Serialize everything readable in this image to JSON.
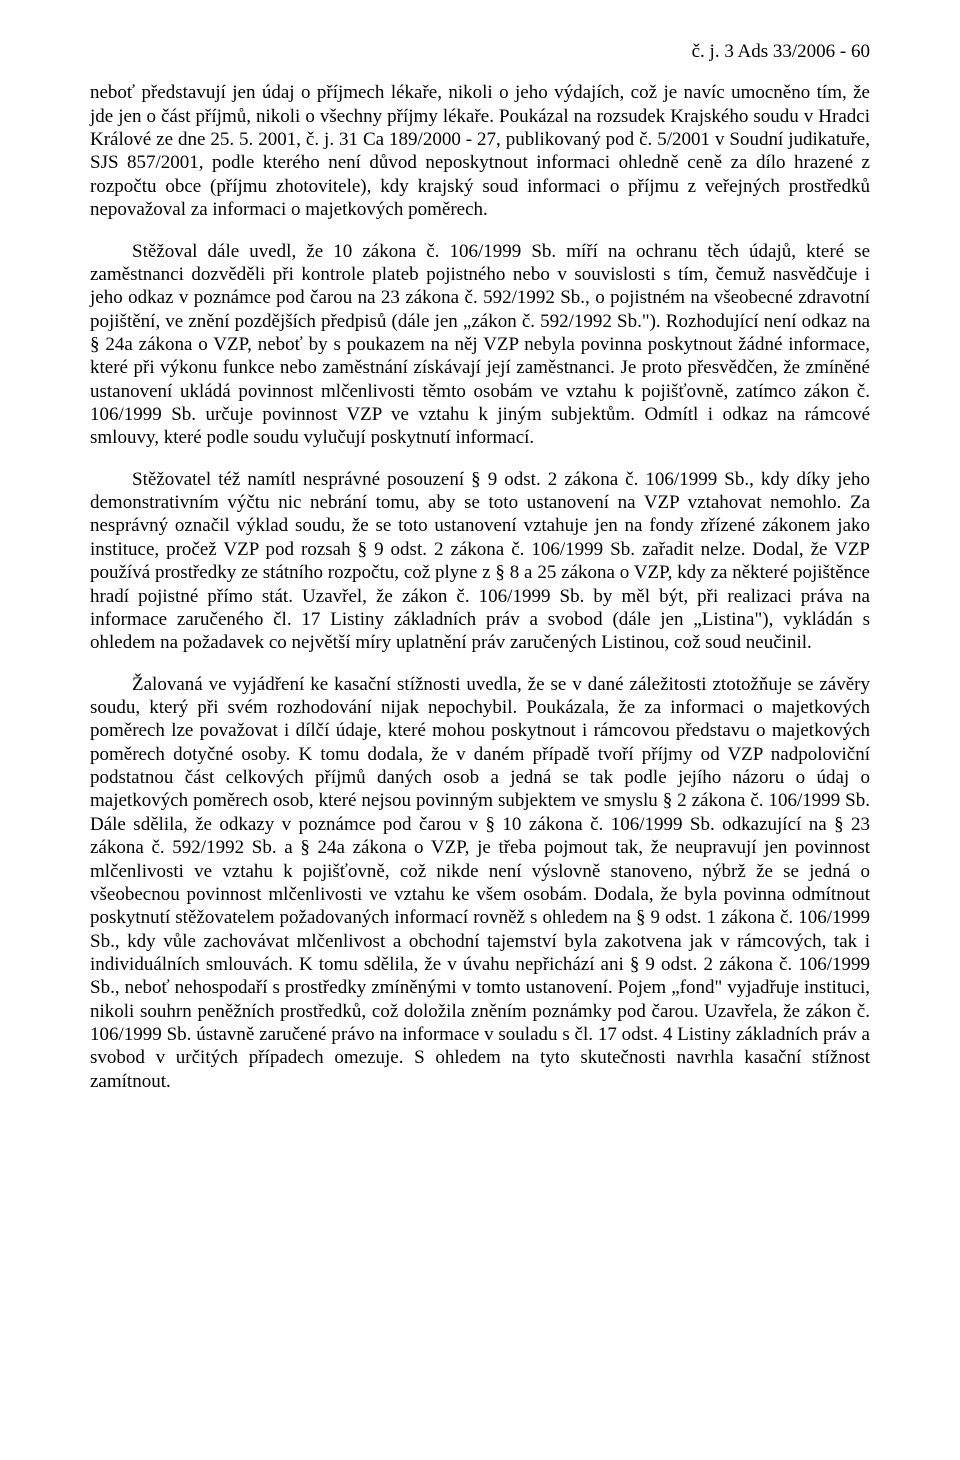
{
  "caseNumber": "č. j. 3 Ads 33/2006 - 60",
  "paragraphs": [
    "neboť představují jen údaj o příjmech lékaře, nikoli o jeho výdajích, což je navíc umocněno tím, že jde jen o část příjmů, nikoli o všechny příjmy lékaře. Poukázal na rozsudek Krajského soudu v Hradci Králové ze dne 25. 5. 2001, č. j. 31 Ca 189/2000 - 27, publikovaný pod č. 5/2001 v Soudní judikatuře, SJS 857/2001, podle kterého není důvod neposkytnout informaci ohledně ceně za dílo hrazené z rozpočtu obce (příjmu zhotovitele), kdy krajský soud informaci o příjmu z veřejných prostředků nepovažoval za informaci o majetkových poměrech.",
    "Stěžoval dále uvedl, že 10 zákona č. 106/1999 Sb. míří na ochranu těch údajů, které se zaměstnanci dozvěděli při kontrole plateb pojistného nebo v souvislosti s tím, čemuž nasvědčuje i jeho odkaz v poznámce pod čarou na 23 zákona č. 592/1992 Sb., o pojistném na všeobecné zdravotní pojištění, ve znění pozdějších předpisů (dále jen „zákon č. 592/1992 Sb.\"). Rozhodující není odkaz na § 24a zákona o VZP, neboť by s poukazem na něj VZP nebyla povinna poskytnout žádné informace, které při výkonu funkce nebo zaměstnání získávají její zaměstnanci. Je proto přesvědčen, že zmíněné ustanovení ukládá povinnost mlčenlivosti těmto osobám ve vztahu k pojišťovně, zatímco zákon č. 106/1999 Sb. určuje povinnost VZP ve vztahu k jiným subjektům. Odmítl i odkaz na rámcové smlouvy, které podle soudu vylučují poskytnutí informací.",
    "Stěžovatel též namítl nesprávné posouzení § 9 odst. 2 zákona č. 106/1999 Sb., kdy díky jeho demonstrativním výčtu nic nebrání tomu, aby se toto ustanovení na VZP vztahovat nemohlo. Za nesprávný označil výklad soudu, že se toto ustanovení vztahuje jen na fondy zřízené zákonem jako instituce, pročež VZP pod rozsah § 9 odst. 2 zákona č. 106/1999 Sb. zařadit nelze. Dodal, že VZP používá prostředky ze státního rozpočtu, což plyne z § 8 a 25 zákona o VZP, kdy za některé pojištěnce hradí pojistné přímo stát. Uzavřel, že zákon č. 106/1999 Sb. by měl být, při realizaci práva na informace zaručeného čl. 17 Listiny základních práv a svobod (dále jen „Listina\"), vykládán s ohledem na požadavek co největší míry uplatnění práv zaručených Listinou, což soud neučinil.",
    "Žalovaná ve vyjádření ke kasační stížnosti uvedla, že se v dané záležitosti ztotožňuje se závěry soudu, který při svém rozhodování nijak nepochybil. Poukázala, že za informaci o majetkových poměrech lze považovat i dílčí údaje, které mohou poskytnout i rámcovou představu o majetkových poměrech dotyčné osoby. K tomu dodala, že v daném případě tvoří příjmy od VZP nadpoloviční podstatnou část celkových příjmů daných osob a jedná se tak podle jejího názoru o údaj o majetkových poměrech osob, které nejsou povinným subjektem ve smyslu § 2 zákona č. 106/1999 Sb. Dále sdělila, že odkazy v poznámce pod čarou v § 10 zákona č. 106/1999 Sb. odkazující na § 23 zákona č. 592/1992 Sb. a § 24a zákona o VZP, je třeba pojmout tak, že neupravují jen povinnost mlčenlivosti ve vztahu k pojišťovně, což nikde není výslovně stanoveno, nýbrž že se jedná o všeobecnou povinnost mlčenlivosti ve vztahu ke všem osobám. Dodala, že byla povinna odmítnout poskytnutí stěžovatelem požadovaných informací rovněž s ohledem na § 9 odst. 1 zákona č. 106/1999 Sb., kdy vůle zachovávat mlčenlivost a obchodní tajemství byla zakotvena jak v rámcových, tak i individuálních smlouvách. K tomu sdělila, že v úvahu nepřichází ani § 9 odst. 2 zákona č. 106/1999 Sb., neboť nehospodaří s prostředky zmíněnými v tomto ustanovení. Pojem „fond\" vyjadřuje instituci, nikoli souhrn peněžních prostředků, což doložila zněním poznámky pod čarou. Uzavřela, že zákon č. 106/1999 Sb. ústavně zaručené právo na informace v souladu s čl. 17 odst. 4 Listiny základních práv a svobod v určitých případech omezuje. S ohledem na tyto skutečnosti navrhla kasační stížnost zamítnout."
  ]
}
